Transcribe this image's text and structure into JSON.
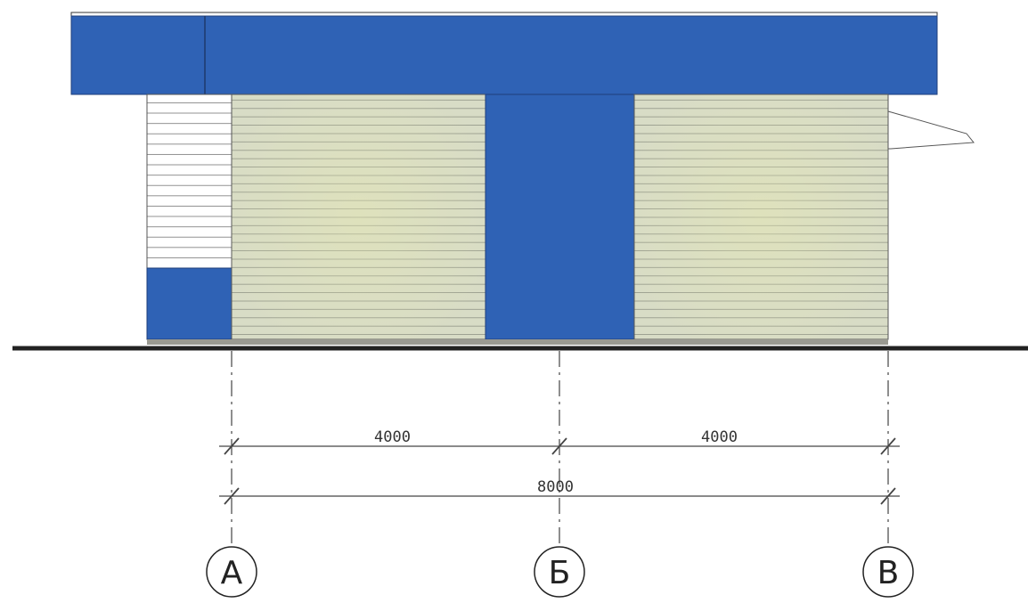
{
  "drawing": {
    "colors": {
      "fascia": "#2f62b5",
      "wall_panel": "#d8dcc6",
      "siding_line": "#8f9386",
      "louver": "#ffffff",
      "ground": "#222222",
      "plinth": "#9a9a92",
      "dim_line": "#444444"
    },
    "dimensions": {
      "segment_left": "4000",
      "segment_right": "4000",
      "overall": "8000"
    },
    "axes": [
      {
        "id": "A",
        "label": "А"
      },
      {
        "id": "B",
        "label": "Б"
      },
      {
        "id": "V",
        "label": "В"
      }
    ]
  }
}
